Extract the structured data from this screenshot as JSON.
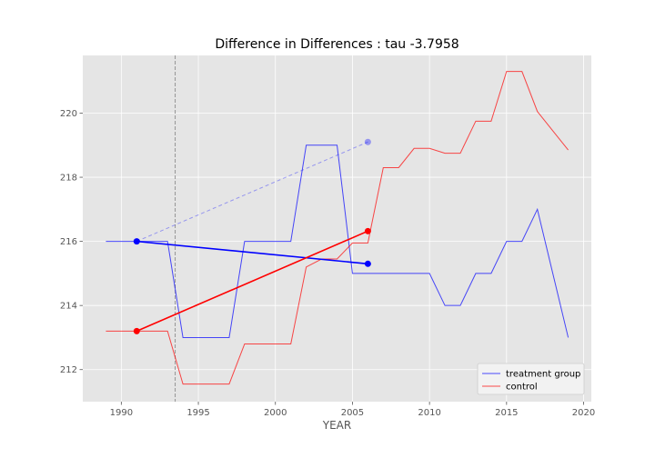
{
  "chart_data": {
    "type": "line",
    "title": "Difference in Differences : tau -3.7958",
    "xlabel": "YEAR",
    "ylabel": "",
    "xlim": [
      1987.5,
      2020.5
    ],
    "ylim": [
      211.0,
      221.8
    ],
    "xticks": [
      1990,
      1995,
      2000,
      2005,
      2010,
      2015,
      2020
    ],
    "yticks": [
      212,
      214,
      216,
      218,
      220
    ],
    "grid": true,
    "legend": {
      "placement": "lower-right",
      "entries": [
        "treatment group",
        "control"
      ]
    },
    "colors": {
      "treatment": "#0000ff",
      "control": "#ff0000",
      "background": "#e5e5e5",
      "grid": "#ffffff",
      "vline": "#808080"
    },
    "intervention_year": 1993.5,
    "series": [
      {
        "name": "treatment group",
        "x": [
          1989,
          1990,
          1991,
          1992,
          1993,
          1994,
          1995,
          1996,
          1997,
          1998,
          1999,
          2000,
          2001,
          2002,
          2003,
          2004,
          2005,
          2006,
          2007,
          2008,
          2009,
          2010,
          2011,
          2012,
          2013,
          2014,
          2015,
          2016,
          2017,
          2018,
          2019
        ],
        "y": [
          216,
          216,
          216,
          216,
          216,
          213,
          213,
          213,
          213,
          216,
          216,
          216,
          216,
          219,
          219,
          219,
          215,
          215,
          215,
          215,
          215,
          215,
          214,
          214,
          215,
          215,
          216,
          216,
          217,
          215,
          213
        ]
      },
      {
        "name": "control",
        "x": [
          1989,
          1990,
          1991,
          1992,
          1993,
          1994,
          1995,
          1996,
          1997,
          1998,
          1999,
          2000,
          2001,
          2002,
          2003,
          2004,
          2005,
          2006,
          2007,
          2008,
          2009,
          2010,
          2011,
          2012,
          2013,
          2014,
          2015,
          2016,
          2017,
          2018,
          2019
        ],
        "y": [
          213.2,
          213.2,
          213.2,
          213.2,
          213.2,
          211.55,
          211.55,
          211.55,
          211.55,
          212.8,
          212.8,
          212.8,
          212.8,
          215.2,
          215.45,
          215.45,
          215.95,
          215.95,
          218.3,
          218.3,
          218.9,
          218.9,
          218.75,
          218.75,
          219.75,
          219.75,
          221.3,
          221.3,
          220.05,
          219.45,
          218.85
        ]
      }
    ],
    "did_lines": {
      "treatment": {
        "x": [
          1991,
          2006
        ],
        "y": [
          216.0,
          215.3
        ]
      },
      "control": {
        "x": [
          1991,
          2006
        ],
        "y": [
          213.2,
          216.32
        ]
      },
      "counterfactual": {
        "x": [
          1991,
          2006
        ],
        "y": [
          216.0,
          219.1
        ]
      }
    }
  }
}
